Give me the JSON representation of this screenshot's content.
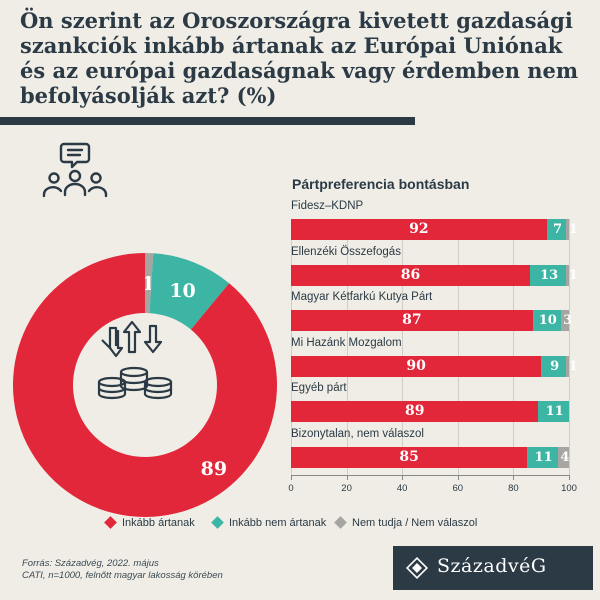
{
  "title": "Ön szerint az Oroszországra kivetett gazdasági szankciók inkább ártanak az Európai Uniónak és az európai gazdaságnak vagy érdemben nem befolyásolják azt? (%)",
  "colors": {
    "harm": "#e3273a",
    "noharm": "#3db5a4",
    "dk": "#a6a5a2",
    "dark": "#2b3a45",
    "bg": "#efede6"
  },
  "icons": {
    "people": "audience-icon",
    "arrows": "up-down-arrows-icon",
    "coins": "coins-stack-icon",
    "logo": "diamond-logo-icon"
  },
  "chart_data": [
    {
      "type": "pie",
      "title": "",
      "categories": [
        "Inkább ártanak",
        "Inkább nem ártanak",
        "Nem tudja / Nem válaszol"
      ],
      "values": [
        89,
        10,
        1
      ],
      "labels": [
        "89",
        "10",
        "1"
      ]
    },
    {
      "type": "bar",
      "orientation": "horizontal",
      "stacked": true,
      "title": "Pártpreferencia bontásban",
      "categories": [
        "Fidesz–KDNP",
        "Ellenzéki Összefogás",
        "Magyar Kétfarkú Kutya Párt",
        "Mi Hazánk Mozgalom",
        "Egyéb párt",
        "Bizonytalan, nem válaszol"
      ],
      "series": [
        {
          "name": "Inkább ártanak",
          "values": [
            92,
            86,
            87,
            90,
            89,
            85
          ]
        },
        {
          "name": "Inkább nem ártanak",
          "values": [
            7,
            13,
            10,
            9,
            11,
            11
          ]
        },
        {
          "name": "Nem tudja / Nem válaszol",
          "values": [
            1,
            1,
            3,
            1,
            0,
            4
          ]
        }
      ],
      "xlim": [
        0,
        100
      ],
      "xticks": [
        "0",
        "20",
        "40",
        "60",
        "80",
        "100"
      ],
      "grid": true,
      "legend": "bottom"
    }
  ],
  "legend": [
    "Inkább ártanak",
    "Inkább nem ártanak",
    "Nem tudja / Nem válaszol"
  ],
  "source": {
    "line1": "Forrás: Századvég, 2022. május",
    "line2": "CATI, n=1000, felnőtt magyar lakosság körében"
  },
  "brand": "SzázadvéG"
}
